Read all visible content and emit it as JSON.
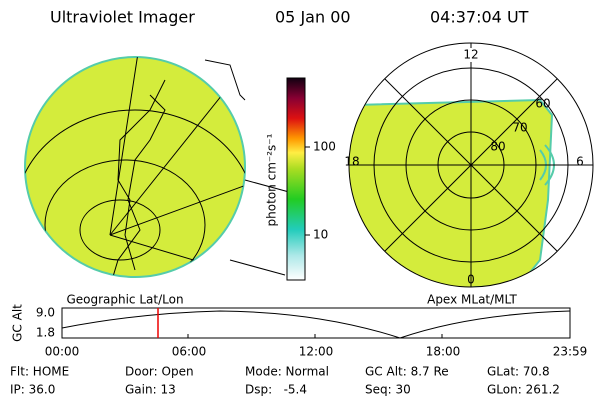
{
  "header": {
    "title": "Ultraviolet Imager",
    "date": "05 Jan 00",
    "time": "04:37:04 UT"
  },
  "colorbar": {
    "label": "photon cm⁻²s⁻¹",
    "ticks": [
      "100",
      "10"
    ]
  },
  "left_panel": {
    "label": "Geographic Lat/Lon"
  },
  "right_panel": {
    "label": "Apex MLat/MLT",
    "mlt_labels": [
      "12",
      "18",
      "6",
      "0"
    ],
    "lat_labels": [
      "60",
      "70",
      "80"
    ]
  },
  "altitude_plot": {
    "y_label": "GC Alt",
    "y_ticks": [
      "9.0",
      "1.8"
    ],
    "x_ticks": [
      "00:00",
      "06:00",
      "12:00",
      "18:00",
      "23:59"
    ]
  },
  "footer": {
    "rows": [
      [
        "Flt: HOME",
        "Door: Open",
        "Mode: Normal",
        "GC Alt: 8.7 Re",
        "GLat: 70.8"
      ],
      [
        "IP: 36.0",
        "Gain: 13",
        "Dsp:   -5.4",
        "Seq: 30",
        "GLon: 261.2"
      ]
    ]
  }
}
